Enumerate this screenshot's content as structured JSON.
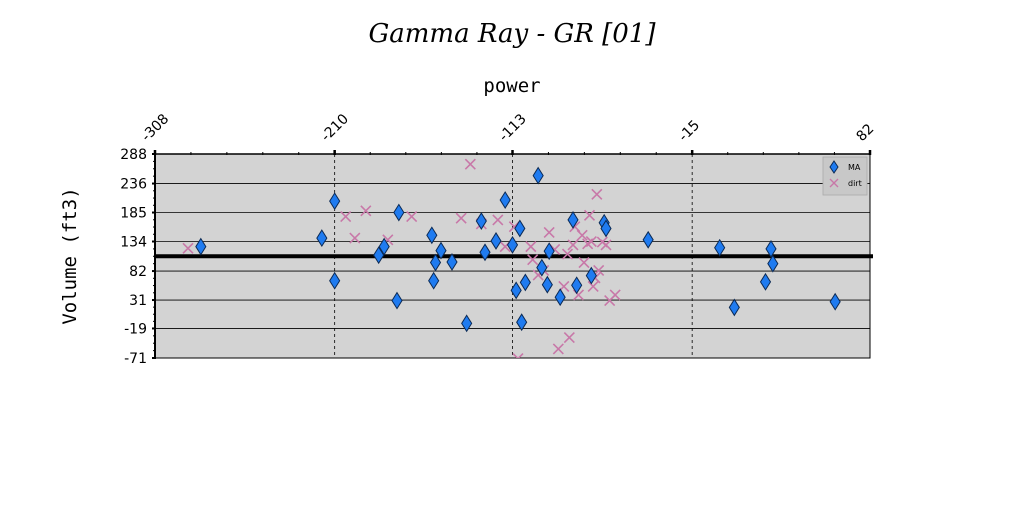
{
  "chart_data": {
    "type": "scatter",
    "title": "Gamma Ray - GR [01]",
    "xlabel": "power",
    "ylabel": "Volume (ft3)",
    "xlim": [
      -308,
      82
    ],
    "ylim": [
      -71,
      288
    ],
    "x_ticks": [
      "-308",
      "-210",
      "-113",
      "-15",
      "82"
    ],
    "y_ticks": [
      "288",
      "236",
      "185",
      "134",
      "82",
      "31",
      "-19",
      "-71"
    ],
    "grid": true,
    "legend_position": "top-right",
    "reference_line_y": 108,
    "colors": {
      "plot_bg": "#d3d3d3",
      "ma": "#1f7bf0",
      "dirt": "#c878a8"
    },
    "series": [
      {
        "name": "MA",
        "marker": "diamond",
        "points": [
          [
            -283,
            125
          ],
          [
            -217,
            140
          ],
          [
            -210,
            205
          ],
          [
            -210,
            65
          ],
          [
            -186,
            110
          ],
          [
            -183,
            125
          ],
          [
            -175,
            185
          ],
          [
            -176,
            30
          ],
          [
            -157,
            145
          ],
          [
            -156,
            65
          ],
          [
            -155,
            97
          ],
          [
            -152,
            118
          ],
          [
            -146,
            98
          ],
          [
            -138,
            -10
          ],
          [
            -130,
            170
          ],
          [
            -128,
            115
          ],
          [
            -122,
            135
          ],
          [
            -117,
            207
          ],
          [
            -113,
            128
          ],
          [
            -111,
            48
          ],
          [
            -109,
            157
          ],
          [
            -108,
            -8
          ],
          [
            -106,
            62
          ],
          [
            -99,
            250
          ],
          [
            -97,
            88
          ],
          [
            -94,
            58
          ],
          [
            -93,
            117
          ],
          [
            -87,
            36
          ],
          [
            -80,
            172
          ],
          [
            -78,
            57
          ],
          [
            -70,
            74
          ],
          [
            -63,
            167
          ],
          [
            -62,
            157
          ],
          [
            -39,
            137
          ],
          [
            0,
            123
          ],
          [
            8,
            18
          ],
          [
            25,
            63
          ],
          [
            28,
            121
          ],
          [
            29,
            95
          ],
          [
            63,
            28
          ]
        ]
      },
      {
        "name": "dirt",
        "marker": "x",
        "points": [
          [
            -290,
            122
          ],
          [
            -204,
            178
          ],
          [
            -199,
            140
          ],
          [
            -193,
            188
          ],
          [
            -181,
            137
          ],
          [
            -168,
            178
          ],
          [
            -136,
            270
          ],
          [
            -141,
            175
          ],
          [
            -130,
            165
          ],
          [
            -121,
            172
          ],
          [
            -117,
            125
          ],
          [
            -112,
            160
          ],
          [
            -110,
            -72
          ],
          [
            -103,
            125
          ],
          [
            -102,
            102
          ],
          [
            -99,
            75
          ],
          [
            -96,
            83
          ],
          [
            -93,
            150
          ],
          [
            -90,
            120
          ],
          [
            -88,
            -55
          ],
          [
            -85,
            55
          ],
          [
            -83,
            112
          ],
          [
            -82,
            -35
          ],
          [
            -80,
            128
          ],
          [
            -79,
            160
          ],
          [
            -77,
            40
          ],
          [
            -75,
            145
          ],
          [
            -74,
            97
          ],
          [
            -72,
            130
          ],
          [
            -71,
            180
          ],
          [
            -70,
            134
          ],
          [
            -69,
            55
          ],
          [
            -68,
            70
          ],
          [
            -67,
            217
          ],
          [
            -66,
            83
          ],
          [
            -64,
            133
          ],
          [
            -62,
            128
          ],
          [
            -60,
            30
          ],
          [
            -57,
            40
          ]
        ]
      }
    ]
  }
}
